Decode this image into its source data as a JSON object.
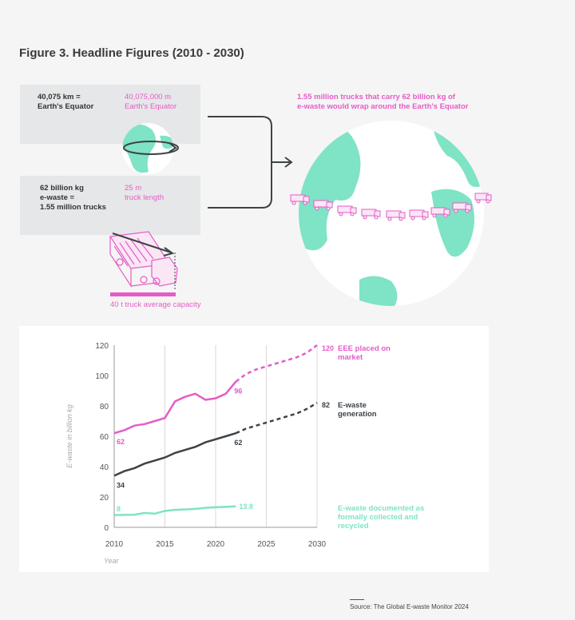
{
  "figure_title": "Figure 3. Headline Figures (2010 - 2030)",
  "infographic": {
    "equator_km": "40,075 km =\nEarth's Equator",
    "equator_m": "40,075,000 m\nEarth's Equator",
    "ewaste_trucks": "62 billion kg\ne-waste =\n1.55 million trucks",
    "truck_length": "25 m\ntruck length",
    "truck_capacity": "40 t truck average capacity",
    "trucks_wrap": "1.55 million trucks that carry 62 billion kg of\ne-waste would wrap around the Earth's Equator"
  },
  "colors": {
    "pink": "#e55cc7",
    "dark": "#3d4347",
    "mint": "#7fe3c6",
    "box": "#e6e7e8"
  },
  "chart_data": {
    "type": "line",
    "ylabel": "E-waste in billion kg",
    "xlabel": "Year",
    "xlim": [
      2010,
      2030
    ],
    "ylim": [
      0,
      120
    ],
    "xticks": [
      2010,
      2015,
      2020,
      2025,
      2030
    ],
    "yticks": [
      0,
      20,
      40,
      60,
      80,
      100,
      120
    ],
    "grid": "vertical",
    "series": [
      {
        "name": "EEE placed on market",
        "color": "#e55cc7",
        "x": [
          2010,
          2011,
          2012,
          2013,
          2014,
          2015,
          2016,
          2017,
          2018,
          2019,
          2020,
          2021,
          2022
        ],
        "values": [
          62,
          64,
          67,
          68,
          70,
          72,
          83,
          86,
          88,
          84,
          85,
          88,
          96
        ],
        "projection": {
          "x": [
            2022,
            2023,
            2024,
            2025,
            2026,
            2027,
            2028,
            2029,
            2030
          ],
          "values": [
            96,
            101,
            104,
            106,
            108,
            110,
            112,
            115,
            120
          ]
        },
        "start_label": "62",
        "mid_label": "96",
        "end_label": "120"
      },
      {
        "name": "E-waste generation",
        "color": "#3d4347",
        "x": [
          2010,
          2011,
          2012,
          2013,
          2014,
          2015,
          2016,
          2017,
          2018,
          2019,
          2020,
          2021,
          2022
        ],
        "values": [
          34,
          37,
          39,
          42,
          44,
          46,
          49,
          51,
          53,
          56,
          58,
          60,
          62
        ],
        "projection": {
          "x": [
            2022,
            2023,
            2024,
            2025,
            2026,
            2027,
            2028,
            2029,
            2030
          ],
          "values": [
            62,
            65,
            67,
            69,
            71,
            73,
            75,
            78,
            82
          ]
        },
        "start_label": "34",
        "mid_label": "62",
        "end_label": "82"
      },
      {
        "name": "E-waste documented as formally collected and recycled",
        "color": "#7fe3c6",
        "x": [
          2010,
          2011,
          2012,
          2013,
          2014,
          2015,
          2016,
          2017,
          2018,
          2019,
          2020,
          2021,
          2022
        ],
        "values": [
          8,
          8.2,
          8.3,
          9.5,
          9,
          10.8,
          11.5,
          11.8,
          12.2,
          12.8,
          13.2,
          13.5,
          13.8
        ],
        "start_label": "8",
        "end_label": "13.8"
      }
    ],
    "legend_labels": [
      "EEE placed on\nmarket",
      "E-waste\ngeneration",
      "E-waste documented as\nformally collected and\nrecycled"
    ]
  },
  "source": "Source: The Global E-waste Monitor 2024"
}
